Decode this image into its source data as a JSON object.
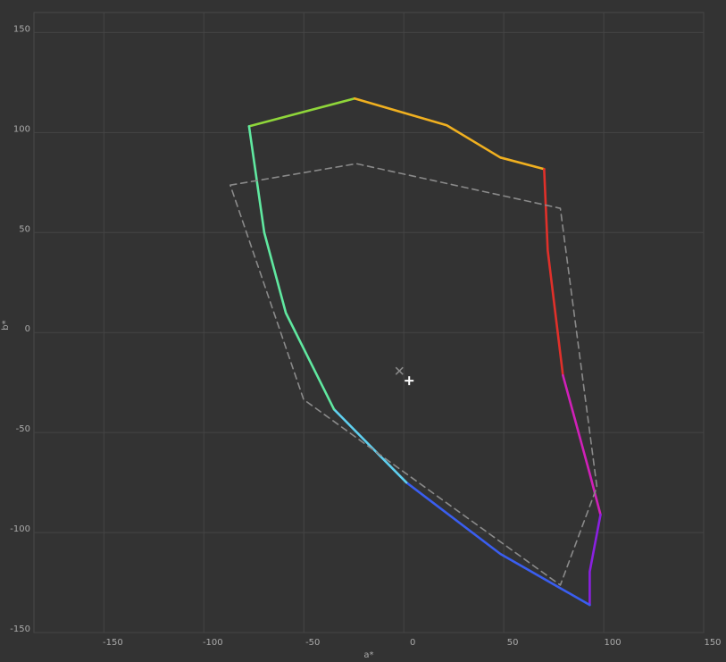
{
  "chart_data": {
    "type": "line",
    "x_label": "a*",
    "y_label": "b*",
    "xlim": [
      -185,
      150
    ],
    "ylim": [
      -150,
      160
    ],
    "xticks": [
      -150,
      -100,
      -50,
      0,
      50,
      100,
      150
    ],
    "yticks": [
      -150,
      -100,
      -50,
      0,
      50,
      100,
      150
    ],
    "grid": true,
    "series": [
      {
        "color": "#8fd63a",
        "x": [
          -77.4,
          -50.1,
          -24.6
        ],
        "values": [
          103.1,
          110.3,
          117
        ]
      },
      {
        "color": "#f0b020",
        "x": [
          -24.6,
          21.5,
          48.3,
          70.2
        ],
        "values": [
          117,
          103.6,
          87.5,
          81.7
        ]
      },
      {
        "color": "#e0302a",
        "x": [
          70.2,
          72,
          79.6
        ],
        "values": [
          81.7,
          41,
          -21.4
        ]
      },
      {
        "color": "#d020b8",
        "x": [
          79.6,
          93,
          98.4
        ],
        "values": [
          -21.4,
          -70.5,
          -91.1
        ]
      },
      {
        "color": "#8a20e0",
        "x": [
          98.4,
          93,
          93
        ],
        "values": [
          -91.1,
          -119.6,
          -136.2
        ]
      },
      {
        "color": "#3a5ef0",
        "x": [
          93,
          48.3,
          1.3
        ],
        "values": [
          -136.2,
          -110.7,
          -75
        ]
      },
      {
        "color": "#5fd0f0",
        "x": [
          1.3,
          -34.9
        ],
        "values": [
          -75,
          -38.4
        ]
      },
      {
        "color": "#60e8a0",
        "x": [
          -34.9,
          -59,
          -69.8,
          -77.4
        ],
        "values": [
          -38.4,
          9.8,
          50,
          103.1
        ]
      },
      {
        "color": "#8a8a8a",
        "dash": true,
        "x": [
          -86.8,
          -23.7,
          78.3,
          96.6,
          78.3,
          -50.1,
          -86.8
        ],
        "values": [
          73.7,
          84.4,
          62.1,
          -77.2,
          -126.3,
          -33.5,
          73.7
        ]
      }
    ],
    "points": [
      {
        "x": -2.2,
        "y": -19.2,
        "marker": "x",
        "color": "#8a8a8a"
      },
      {
        "x": 2.7,
        "y": -24.1,
        "marker": "+",
        "color": "#ffffff"
      }
    ]
  }
}
